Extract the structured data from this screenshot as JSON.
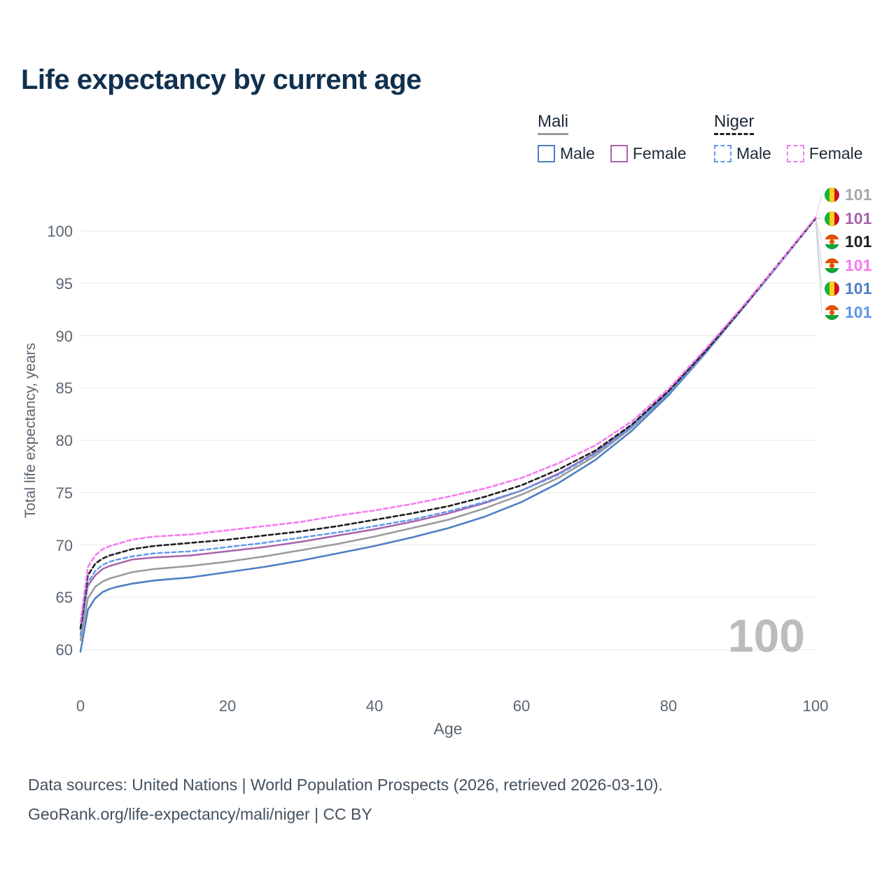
{
  "title": "Life expectancy by current age",
  "legend": {
    "mali": {
      "label": "Mali",
      "male": "Male",
      "female": "Female"
    },
    "niger": {
      "label": "Niger",
      "male": "Male",
      "female": "Female"
    }
  },
  "watermark": "100",
  "footer": {
    "line1": "Data sources: United Nations | World Population Prospects (2026, retrieved 2026-03-10).",
    "line2": "GeoRank.org/life-expectancy/mali/niger | CC BY"
  },
  "icons": {
    "mali_flag": "mali-flag-icon",
    "niger_flag": "niger-flag-icon"
  },
  "colors": {
    "title": "#10304f",
    "mali_male": "#4f7fc4",
    "mali_female": "#a963ab",
    "mali_both": "#9b9b9b",
    "niger_male": "#5e97ec",
    "niger_both": "#1f1f1f",
    "niger_female": "#f57af0",
    "gridline": "#e7e7e9",
    "watermark": "#bcbcbc"
  },
  "chart_data": {
    "type": "line",
    "title": "Life expectancy by current age",
    "xlabel": "Age",
    "ylabel": "Total life expectancy, years",
    "xlim": [
      0,
      100
    ],
    "ylim": [
      58,
      103
    ],
    "x_ticks": [
      0,
      20,
      40,
      60,
      80,
      100
    ],
    "y_ticks": [
      60,
      65,
      70,
      75,
      80,
      85,
      90,
      95,
      100
    ],
    "grid": "horizontal-only",
    "legend_position": "top-right",
    "x": [
      0,
      1,
      2,
      3,
      4,
      5,
      7,
      10,
      15,
      20,
      25,
      30,
      35,
      40,
      45,
      50,
      55,
      60,
      65,
      70,
      75,
      80,
      85,
      90,
      95,
      100
    ],
    "series": [
      {
        "id": "mali-male",
        "name": "Mali — Male",
        "color": "#4f7fc4",
        "dash": "",
        "width": 2.6,
        "values": [
          59.8,
          63.8,
          64.9,
          65.5,
          65.8,
          66.0,
          66.3,
          66.6,
          66.9,
          67.4,
          67.9,
          68.5,
          69.2,
          69.9,
          70.7,
          71.6,
          72.7,
          74.1,
          75.9,
          78.1,
          80.9,
          84.3,
          88.3,
          92.5,
          96.8,
          101.2
        ]
      },
      {
        "id": "mali-both",
        "name": "Mali — Both sexes",
        "color": "#9b9b9b",
        "dash": "",
        "width": 2.6,
        "values": [
          60.9,
          64.9,
          66.0,
          66.5,
          66.8,
          67.0,
          67.4,
          67.7,
          68.0,
          68.4,
          68.9,
          69.5,
          70.1,
          70.8,
          71.6,
          72.4,
          73.5,
          74.8,
          76.4,
          78.5,
          81.2,
          84.5,
          88.4,
          92.5,
          96.8,
          101.2
        ]
      },
      {
        "id": "mali-female",
        "name": "Mali — Female",
        "color": "#a963ab",
        "dash": "",
        "width": 2.5,
        "values": [
          62.0,
          66.1,
          67.1,
          67.7,
          68.0,
          68.2,
          68.6,
          68.8,
          69.0,
          69.4,
          69.8,
          70.3,
          70.9,
          71.5,
          72.2,
          73.0,
          74.0,
          75.2,
          76.8,
          78.8,
          81.4,
          84.6,
          88.5,
          92.6,
          96.8,
          101.2
        ]
      },
      {
        "id": "niger-male",
        "name": "Niger — Male",
        "color": "#5e97ec",
        "dash": "6 4",
        "width": 2.4,
        "values": [
          61.4,
          66.4,
          67.5,
          68.1,
          68.4,
          68.6,
          68.9,
          69.2,
          69.4,
          69.8,
          70.2,
          70.7,
          71.2,
          71.8,
          72.4,
          73.2,
          74.1,
          75.2,
          76.7,
          78.7,
          81.3,
          84.5,
          88.4,
          92.5,
          96.8,
          101.2
        ]
      },
      {
        "id": "niger-both",
        "name": "Niger — Both sexes",
        "color": "#1f1f1f",
        "dash": "6 4",
        "width": 2.6,
        "values": [
          62.0,
          67.1,
          68.2,
          68.7,
          69.0,
          69.2,
          69.6,
          69.9,
          70.2,
          70.5,
          70.9,
          71.3,
          71.8,
          72.4,
          73.0,
          73.7,
          74.6,
          75.7,
          77.2,
          79.0,
          81.5,
          84.7,
          88.5,
          92.6,
          96.9,
          101.2
        ]
      },
      {
        "id": "niger-female",
        "name": "Niger — Female",
        "color": "#f57af0",
        "dash": "6 4",
        "width": 2.6,
        "values": [
          62.6,
          67.9,
          69.0,
          69.6,
          69.9,
          70.1,
          70.5,
          70.8,
          71.0,
          71.4,
          71.8,
          72.2,
          72.8,
          73.3,
          73.9,
          74.6,
          75.4,
          76.4,
          77.8,
          79.5,
          81.8,
          84.9,
          88.7,
          92.7,
          96.9,
          101.3
        ]
      }
    ],
    "end_labels": [
      {
        "value": "101",
        "flag": "mali",
        "series": "mali-both",
        "color": "#a8a8a8"
      },
      {
        "value": "101",
        "flag": "mali",
        "series": "mali-female",
        "color": "#a963ab"
      },
      {
        "value": "101",
        "flag": "niger",
        "series": "niger-both",
        "color": "#1f1f1f"
      },
      {
        "value": "101",
        "flag": "niger",
        "series": "niger-female",
        "color": "#f57af0"
      },
      {
        "value": "101",
        "flag": "mali",
        "series": "mali-male",
        "color": "#4f7fc4"
      },
      {
        "value": "101",
        "flag": "niger",
        "series": "niger-male",
        "color": "#5e97ec"
      }
    ]
  }
}
